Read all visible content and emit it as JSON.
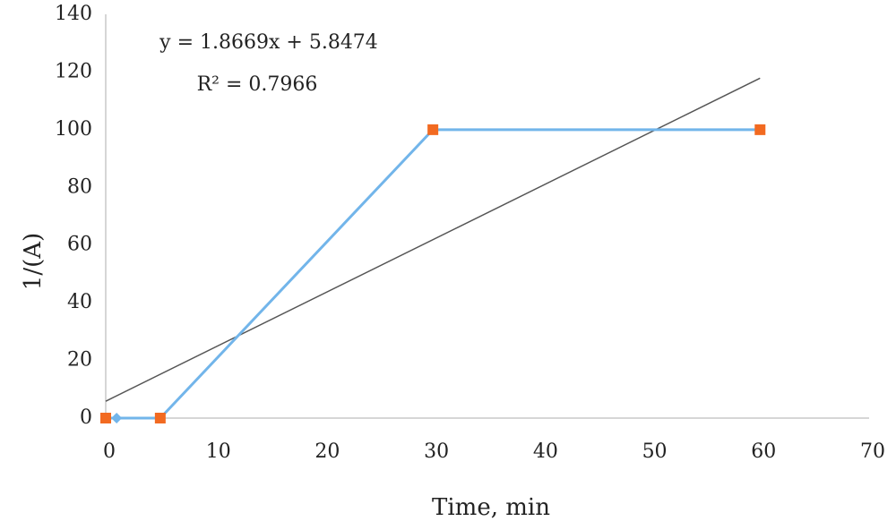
{
  "chart_data": {
    "type": "line",
    "x_label": "Time, min",
    "y_label": "1/(A)",
    "x": [
      0,
      1,
      5,
      30,
      60
    ],
    "series": [
      {
        "color": "#72b5ea",
        "values": [
          0,
          0,
          0,
          100,
          100
        ],
        "marker_colors": [
          "#f26a21",
          "#72b5ea",
          "#f26a21",
          "#f26a21",
          "#f26a21"
        ],
        "markers": [
          "square",
          "diamond",
          "square",
          "square",
          "square"
        ]
      }
    ],
    "trendline": {
      "equation": "y = 1.8669x + 5.8474",
      "r_squared": "R² = 0.7966",
      "slope": 1.8669,
      "intercept": 5.8474,
      "x": [
        0,
        60
      ],
      "color": "#555555"
    },
    "xlim": [
      0,
      70
    ],
    "xticks": [
      0,
      10,
      20,
      30,
      40,
      50,
      60,
      70
    ],
    "ylim": [
      0,
      140
    ],
    "yticks": [
      0,
      20,
      40,
      60,
      80,
      100,
      120,
      140
    ],
    "grid": false
  }
}
